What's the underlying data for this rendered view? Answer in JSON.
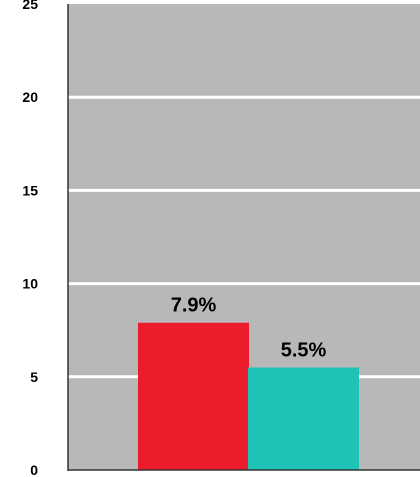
{
  "chart_data": {
    "type": "bar",
    "title": "",
    "xlabel": "",
    "ylabel": "",
    "categories": [
      "",
      ""
    ],
    "values": [
      7.9,
      5.5
    ],
    "data_labels": [
      "7.9%",
      "5.5%"
    ],
    "bar_colors": [
      "#ec1c2d",
      "#1fc3b6"
    ],
    "ylim": [
      0,
      25
    ],
    "y_ticks": [
      0,
      5,
      10,
      15,
      20,
      25
    ],
    "y_tick_labels": [
      "0",
      "5",
      "10",
      "15",
      "20",
      "25"
    ],
    "grid": true,
    "legend": "none",
    "colors": {
      "plot_background": "#b8b8b8",
      "gridline": "#ffffff",
      "axis": "#333333"
    }
  }
}
